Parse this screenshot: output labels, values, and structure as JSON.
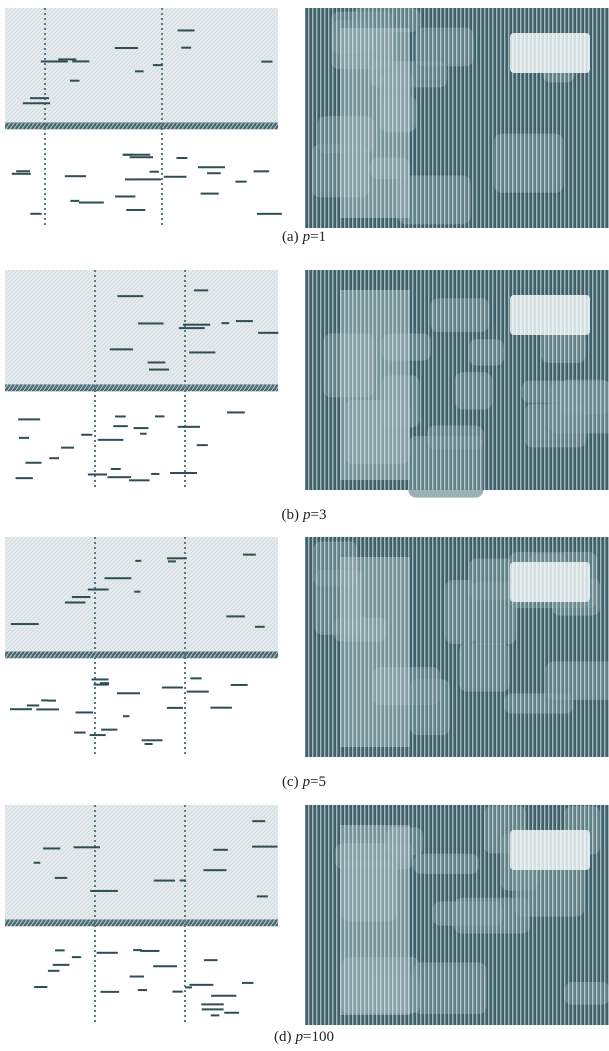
{
  "panels": [
    {
      "tag": "(a)",
      "var": "p",
      "eq": "=1"
    },
    {
      "tag": "(b)",
      "var": "p",
      "eq": "=3"
    },
    {
      "tag": "(c)",
      "var": "p",
      "eq": "=5"
    },
    {
      "tag": "(d)",
      "var": "p",
      "eq": "=100"
    }
  ]
}
